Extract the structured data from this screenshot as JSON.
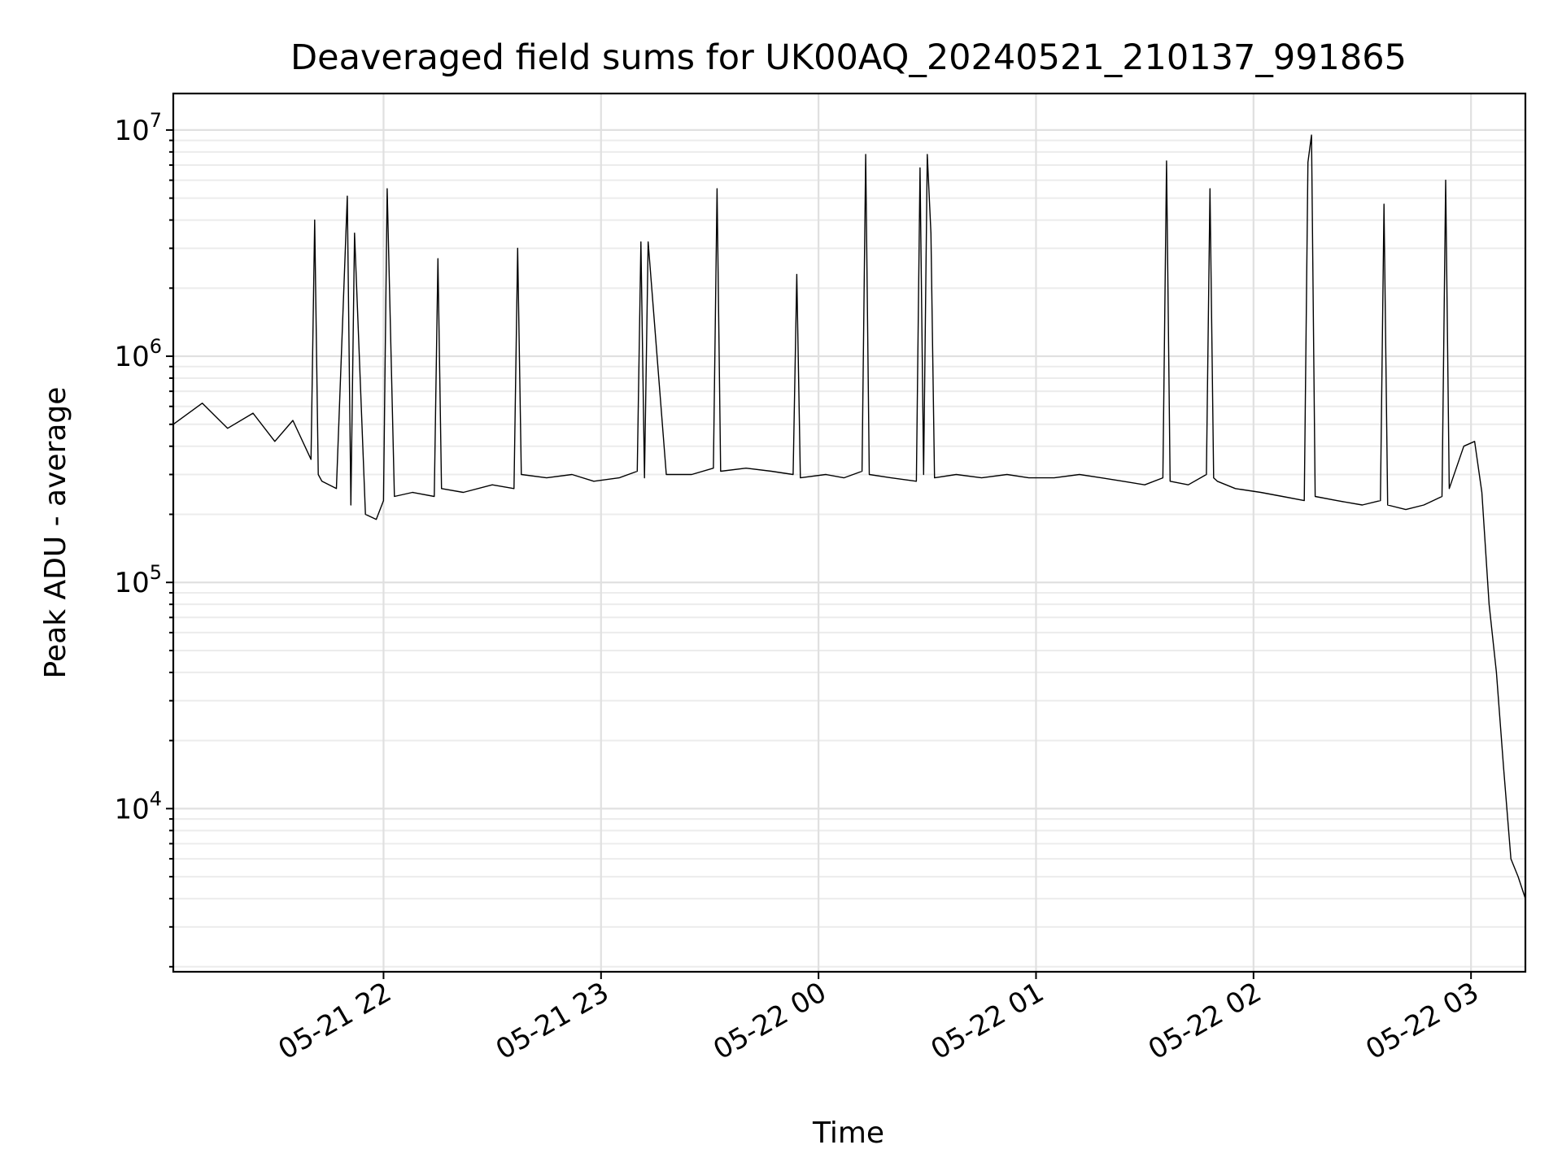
{
  "chart_data": {
    "type": "line",
    "title": "Deaveraged field sums for UK00AQ_20240521_210137_991865",
    "xlabel": "Time",
    "ylabel": "Peak ADU - average",
    "y_scale": "log",
    "ylim": [
      1900,
      14500000
    ],
    "xlim": [
      "2024-05-21T21:02",
      "2024-05-22T03:15"
    ],
    "x_ticks": [
      {
        "label": "05-21 22",
        "time": "2024-05-21T22:00"
      },
      {
        "label": "05-21 23",
        "time": "2024-05-21T23:00"
      },
      {
        "label": "05-22 00",
        "time": "2024-05-22T00:00"
      },
      {
        "label": "05-22 01",
        "time": "2024-05-22T01:00"
      },
      {
        "label": "05-22 02",
        "time": "2024-05-22T02:00"
      },
      {
        "label": "05-22 03",
        "time": "2024-05-22T03:00"
      }
    ],
    "y_ticks": [
      {
        "base": "10",
        "exp": "4",
        "value": 10000
      },
      {
        "base": "10",
        "exp": "5",
        "value": 100000
      },
      {
        "base": "10",
        "exp": "6",
        "value": 1000000
      },
      {
        "base": "10",
        "exp": "7",
        "value": 10000000
      }
    ],
    "grid": true,
    "line_color": "#000000",
    "series": [
      {
        "x": [
          "2024-05-21T21:02",
          "2024-05-21T21:10",
          "2024-05-21T21:17",
          "2024-05-21T21:24",
          "2024-05-21T21:30",
          "2024-05-21T21:35",
          "2024-05-21T21:40",
          "2024-05-21T21:41",
          "2024-05-21T21:42",
          "2024-05-21T21:43",
          "2024-05-21T21:47",
          "2024-05-21T21:50",
          "2024-05-21T21:51",
          "2024-05-21T21:52",
          "2024-05-21T21:55",
          "2024-05-21T21:58",
          "2024-05-21T22:00",
          "2024-05-21T22:01",
          "2024-05-21T22:03",
          "2024-05-21T22:08",
          "2024-05-21T22:14",
          "2024-05-21T22:15",
          "2024-05-21T22:16",
          "2024-05-21T22:22",
          "2024-05-21T22:30",
          "2024-05-21T22:36",
          "2024-05-21T22:37",
          "2024-05-21T22:38",
          "2024-05-21T22:45",
          "2024-05-21T22:52",
          "2024-05-21T22:58",
          "2024-05-21T23:05",
          "2024-05-21T23:10",
          "2024-05-21T23:11",
          "2024-05-21T23:12",
          "2024-05-21T23:13",
          "2024-05-21T23:18",
          "2024-05-21T23:25",
          "2024-05-21T23:31",
          "2024-05-21T23:32",
          "2024-05-21T23:33",
          "2024-05-21T23:40",
          "2024-05-21T23:47",
          "2024-05-21T23:53",
          "2024-05-21T23:54",
          "2024-05-21T23:55",
          "2024-05-22T00:02",
          "2024-05-22T00:07",
          "2024-05-22T00:12",
          "2024-05-22T00:13",
          "2024-05-22T00:14",
          "2024-05-22T00:20",
          "2024-05-22T00:27",
          "2024-05-22T00:28",
          "2024-05-22T00:29",
          "2024-05-22T00:30",
          "2024-05-22T00:31",
          "2024-05-22T00:32",
          "2024-05-22T00:38",
          "2024-05-22T00:45",
          "2024-05-22T00:52",
          "2024-05-22T00:58",
          "2024-05-22T01:05",
          "2024-05-22T01:12",
          "2024-05-22T01:18",
          "2024-05-22T01:24",
          "2024-05-22T01:30",
          "2024-05-22T01:35",
          "2024-05-22T01:36",
          "2024-05-22T01:37",
          "2024-05-22T01:42",
          "2024-05-22T01:47",
          "2024-05-22T01:48",
          "2024-05-22T01:49",
          "2024-05-22T01:50",
          "2024-05-22T01:55",
          "2024-05-22T02:02",
          "2024-05-22T02:08",
          "2024-05-22T02:14",
          "2024-05-22T02:15",
          "2024-05-22T02:16",
          "2024-05-22T02:17",
          "2024-05-22T02:23",
          "2024-05-22T02:30",
          "2024-05-22T02:35",
          "2024-05-22T02:36",
          "2024-05-22T02:37",
          "2024-05-22T02:42",
          "2024-05-22T02:47",
          "2024-05-22T02:52",
          "2024-05-22T02:53",
          "2024-05-22T02:54",
          "2024-05-22T02:58",
          "2024-05-22T03:01",
          "2024-05-22T03:03",
          "2024-05-22T03:05",
          "2024-05-22T03:07",
          "2024-05-22T03:09",
          "2024-05-22T03:11",
          "2024-05-22T03:13",
          "2024-05-22T03:15"
        ],
        "y": [
          500000,
          620000,
          480000,
          560000,
          420000,
          520000,
          350000,
          4000000,
          300000,
          280000,
          260000,
          5100000,
          220000,
          3500000,
          200000,
          190000,
          230000,
          5500000,
          240000,
          250000,
          240000,
          2700000,
          260000,
          250000,
          270000,
          260000,
          3000000,
          300000,
          290000,
          300000,
          280000,
          290000,
          310000,
          3200000,
          290000,
          3200000,
          300000,
          300000,
          320000,
          5500000,
          310000,
          320000,
          310000,
          300000,
          2300000,
          290000,
          300000,
          290000,
          310000,
          7800000,
          300000,
          290000,
          280000,
          6800000,
          300000,
          7800000,
          3500000,
          290000,
          300000,
          290000,
          300000,
          290000,
          290000,
          300000,
          290000,
          280000,
          270000,
          290000,
          7300000,
          280000,
          270000,
          300000,
          5500000,
          290000,
          280000,
          260000,
          250000,
          240000,
          230000,
          7200000,
          9500000,
          240000,
          230000,
          220000,
          230000,
          4700000,
          220000,
          210000,
          220000,
          240000,
          6000000,
          260000,
          400000,
          420000,
          250000,
          80000,
          40000,
          15000,
          6000,
          5000,
          4000
        ]
      }
    ]
  }
}
